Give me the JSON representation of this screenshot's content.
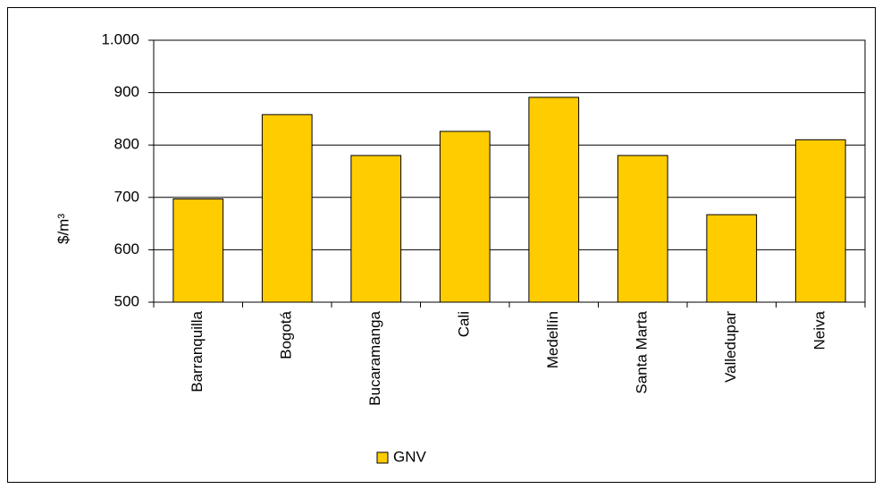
{
  "chart_data": {
    "type": "bar",
    "y_label": "$/m³",
    "categories": [
      "Barranquilla",
      "Bogotá",
      "Bucaramanga",
      "Cali",
      "Medellín",
      "Santa Marta",
      "Valledupar",
      "Neiva"
    ],
    "series": [
      {
        "name": "GNV",
        "color": "#ffcc00",
        "values": [
          697,
          858,
          780,
          826,
          891,
          780,
          667,
          810
        ]
      }
    ],
    "ylim": [
      500,
      1000
    ],
    "yticks": [
      500,
      600,
      700,
      800,
      900,
      {
        "value": 1000,
        "label": "1.000"
      }
    ],
    "grid": true
  }
}
